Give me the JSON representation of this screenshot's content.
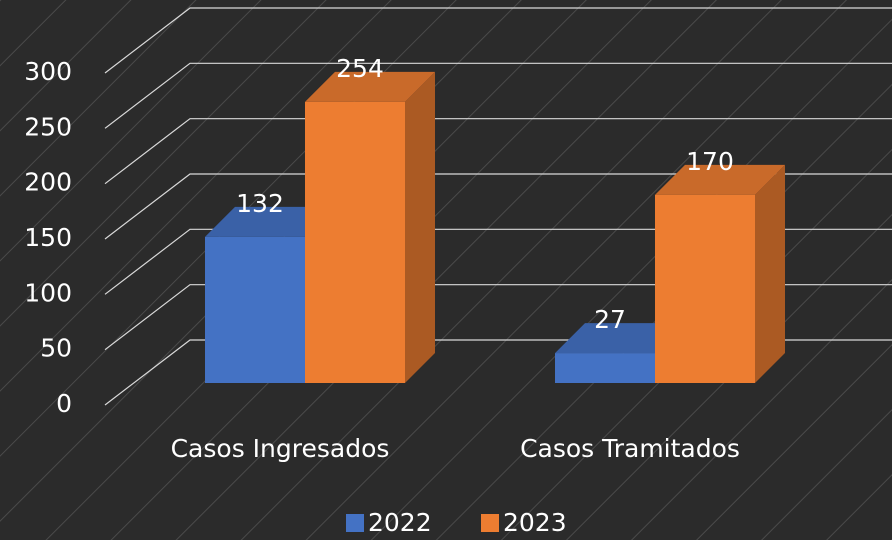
{
  "chart_data": {
    "type": "bar3d",
    "categories": [
      "Casos Ingresados",
      "Casos Tramitados"
    ],
    "series": [
      {
        "name": "2022",
        "color": "#4472c4",
        "values": [
          132,
          27
        ]
      },
      {
        "name": "2023",
        "color": "#ed7d31",
        "values": [
          254,
          170
        ]
      }
    ],
    "ylim": [
      0,
      300
    ],
    "yticks": [
      0,
      50,
      100,
      150,
      200,
      250,
      300
    ],
    "grid": true,
    "legend": "bottom"
  }
}
